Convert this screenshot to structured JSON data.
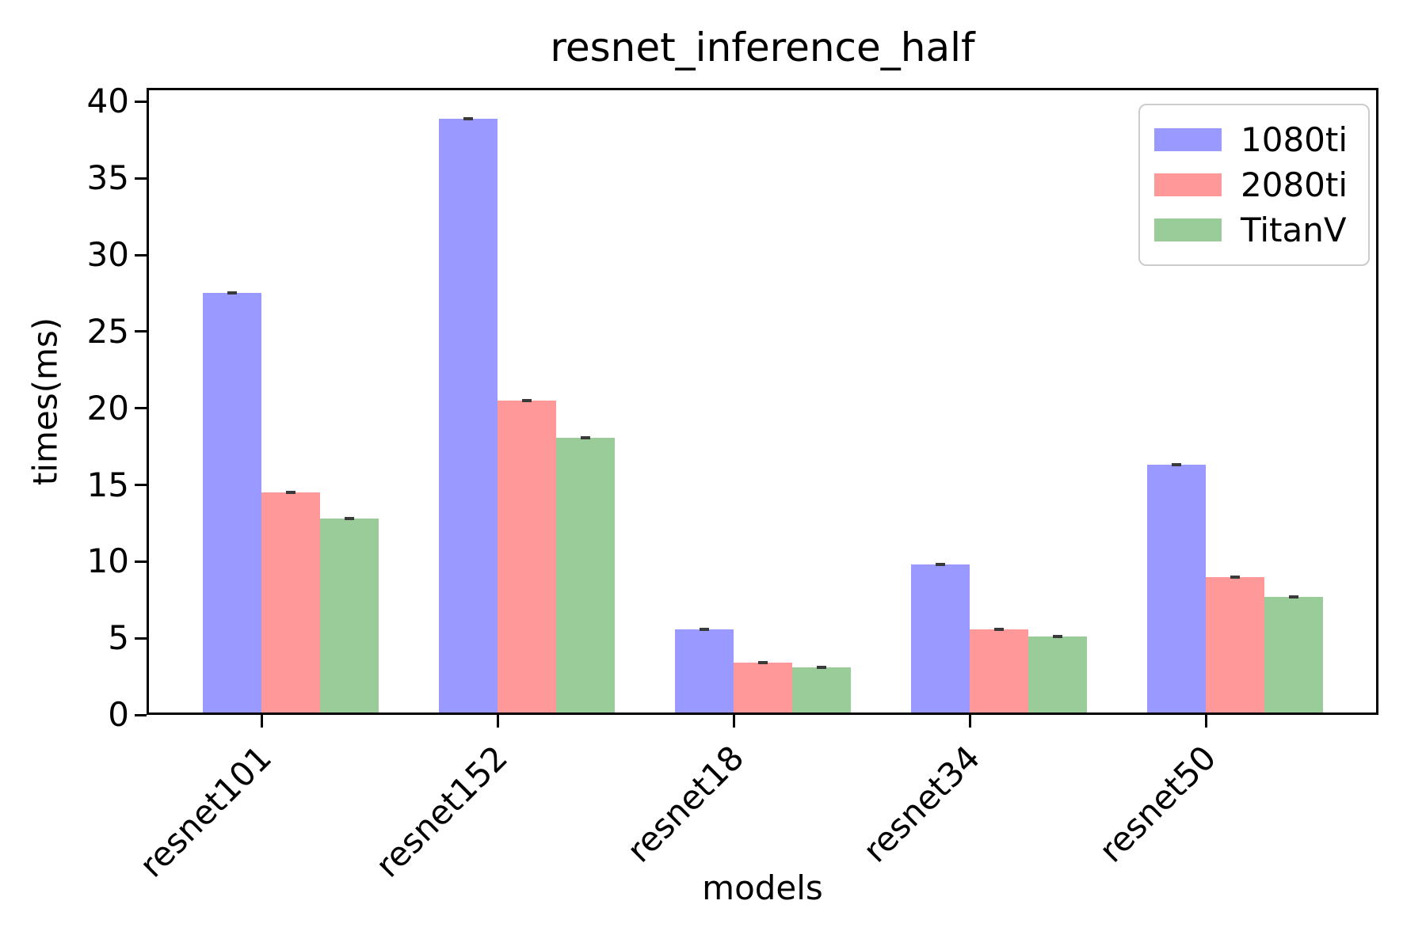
{
  "chart_data": {
    "type": "bar",
    "title": "resnet_inference_half",
    "xlabel": "models",
    "ylabel": "times(ms)",
    "categories": [
      "resnet101",
      "resnet152",
      "resnet18",
      "resnet34",
      "resnet50"
    ],
    "series": [
      {
        "name": "1080ti",
        "color": "#9999ff",
        "values": [
          27.5,
          38.9,
          5.6,
          9.8,
          16.3
        ],
        "errors": [
          0.1,
          0.1,
          0.1,
          0.15,
          0.1
        ]
      },
      {
        "name": "2080ti",
        "color": "#ff9999",
        "values": [
          14.5,
          20.5,
          3.4,
          5.6,
          9.0
        ],
        "errors": [
          0.1,
          0.1,
          0.05,
          0.05,
          0.1
        ]
      },
      {
        "name": "TitanV",
        "color": "#99cc99",
        "values": [
          12.8,
          18.1,
          3.1,
          5.1,
          7.7
        ],
        "errors": [
          0.1,
          0.05,
          0.05,
          0.1,
          0.15
        ]
      }
    ],
    "yticks": [
      0,
      5,
      10,
      15,
      20,
      25,
      30,
      35,
      40
    ],
    "ylim": [
      0,
      40.9
    ],
    "legend_position": "upper right",
    "grid": false,
    "error_bar_color": "#3a3a3a",
    "axis_color": "#000000",
    "text_color": "#000000"
  }
}
